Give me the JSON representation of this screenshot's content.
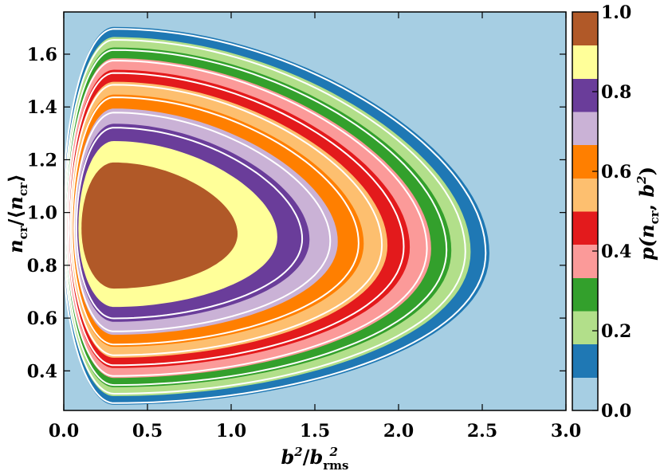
{
  "chart_data": {
    "type": "heatmap",
    "xlabel": "b²/b²rms",
    "xlabel_parts": {
      "base": "b",
      "sup": "2",
      "slash": "/",
      "base2": "b",
      "sub2": "rms",
      "sup2": "2"
    },
    "ylabel": "ncr/⟨ncr⟩",
    "ylabel_parts": {
      "base": "n",
      "sub": "cr",
      "mid": "/⟨",
      "base2": "n",
      "sub2": "cr",
      "close": "⟩"
    },
    "colorbar_label": "p(ncr, b²)",
    "colorbar_label_parts": {
      "pre": "p(",
      "base": "n",
      "sub": "cr",
      "mid": ", ",
      "base2": "b",
      "sup": "2",
      "close": ")"
    },
    "xlim": [
      0.0,
      3.0
    ],
    "ylim": [
      0.25,
      1.76
    ],
    "x_ticks": [
      0.0,
      0.5,
      1.0,
      1.5,
      2.0,
      2.5,
      3.0
    ],
    "x_tick_labels": [
      "0.0",
      "0.5",
      "1.0",
      "1.5",
      "2.0",
      "2.5",
      "3.0"
    ],
    "y_ticks": [
      0.4,
      0.6,
      0.8,
      1.0,
      1.2,
      1.4,
      1.6
    ],
    "y_tick_labels": [
      "0.4",
      "0.6",
      "0.8",
      "1.0",
      "1.2",
      "1.4",
      "1.6"
    ],
    "colorbar_ticks": [
      0.0,
      0.2,
      0.4,
      0.6,
      0.8,
      1.0
    ],
    "colorbar_tick_labels": [
      "0.0",
      "0.2",
      "0.4",
      "0.6",
      "0.8",
      "1.0"
    ],
    "peak": {
      "x": 0.3,
      "y": 0.94
    },
    "levels": [
      {
        "min": 0.0,
        "max": 0.083,
        "color": "#a6cee3"
      },
      {
        "min": 0.083,
        "max": 0.167,
        "color": "#1f78b4"
      },
      {
        "min": 0.167,
        "max": 0.25,
        "color": "#b2df8a"
      },
      {
        "min": 0.25,
        "max": 0.333,
        "color": "#33a02c"
      },
      {
        "min": 0.333,
        "max": 0.417,
        "color": "#fb9a99"
      },
      {
        "min": 0.417,
        "max": 0.5,
        "color": "#e31a1c"
      },
      {
        "min": 0.5,
        "max": 0.583,
        "color": "#fdbf6f"
      },
      {
        "min": 0.583,
        "max": 0.667,
        "color": "#ff7f00"
      },
      {
        "min": 0.667,
        "max": 0.75,
        "color": "#cab2d6"
      },
      {
        "min": 0.75,
        "max": 0.833,
        "color": "#6a3d9a"
      },
      {
        "min": 0.833,
        "max": 0.917,
        "color": "#ffff99"
      },
      {
        "min": 0.917,
        "max": 1.0,
        "color": "#b15928"
      }
    ],
    "white_contour_levels": [
      0.08,
      0.17,
      0.25,
      0.33,
      0.42,
      0.5,
      0.58,
      0.67,
      0.75
    ],
    "contour_color": "#ffffff",
    "grid": false,
    "legend": "none"
  }
}
